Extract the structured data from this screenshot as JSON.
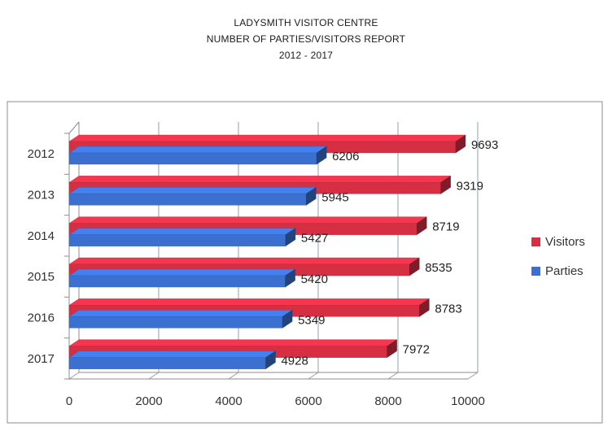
{
  "header": {
    "line1": "LADYSMITH VISITOR CENTRE",
    "line2": "NUMBER OF PARTIES/VISITORS REPORT",
    "line3": "2012 - 2017"
  },
  "chart_data": {
    "type": "bar",
    "orientation": "horizontal",
    "categories": [
      "2012",
      "2013",
      "2014",
      "2015",
      "2016",
      "2017"
    ],
    "series": [
      {
        "name": "Visitors",
        "values": [
          9693,
          9319,
          8719,
          8535,
          8783,
          7972
        ],
        "color": "#d62f44"
      },
      {
        "name": "Parties",
        "values": [
          6206,
          5945,
          5427,
          5420,
          5349,
          4928
        ],
        "color": "#3b6fd0"
      }
    ],
    "xlim": [
      0,
      10000
    ],
    "x_ticks": [
      0,
      2000,
      4000,
      6000,
      8000,
      10000
    ],
    "grid": true,
    "legend": "right",
    "style": "3d"
  }
}
